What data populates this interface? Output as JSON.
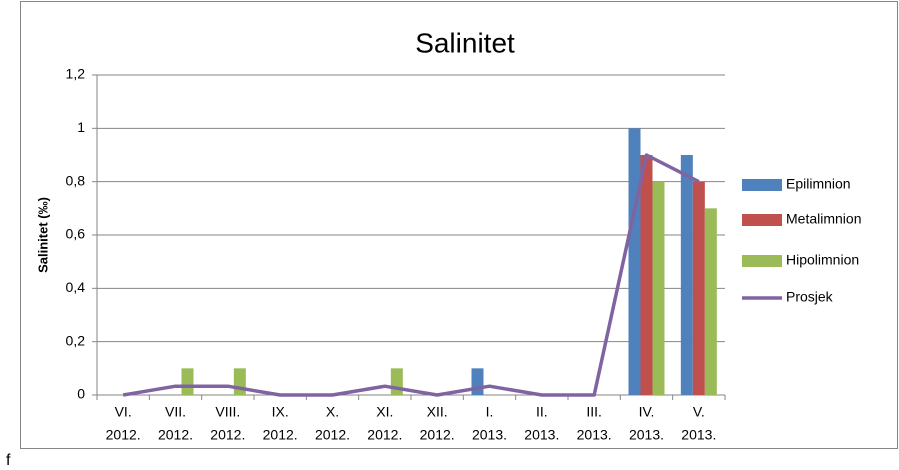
{
  "chart_data": {
    "type": "bar",
    "title": "Salinitet",
    "y_label": "Salinitet (‰)",
    "categories": [
      [
        "VI.",
        "2012."
      ],
      [
        "VII.",
        "2012."
      ],
      [
        "VIII.",
        "2012."
      ],
      [
        "IX.",
        "2012."
      ],
      [
        "X.",
        "2012."
      ],
      [
        "XI.",
        "2012."
      ],
      [
        "XII.",
        "2012."
      ],
      [
        "I.",
        "2013."
      ],
      [
        "II.",
        "2013."
      ],
      [
        "III.",
        "2013."
      ],
      [
        "IV.",
        "2013."
      ],
      [
        "V.",
        "2013."
      ]
    ],
    "series": [
      {
        "name": "Epilimnion",
        "type": "bar",
        "color": "#4f81bd",
        "values": [
          0,
          0,
          0,
          0,
          0,
          0,
          0,
          0.1,
          0,
          0,
          1.0,
          0.9
        ]
      },
      {
        "name": "Metalimnion",
        "type": "bar",
        "color": "#c0504d",
        "values": [
          0,
          0,
          0,
          0,
          0,
          0,
          0,
          0,
          0,
          0,
          0.9,
          0.8
        ]
      },
      {
        "name": "Hipolimnion",
        "type": "bar",
        "color": "#9bbb59",
        "values": [
          0,
          0.1,
          0.1,
          0,
          0,
          0.1,
          0,
          0,
          0,
          0,
          0.8,
          0.7
        ]
      },
      {
        "name": "Prosjek",
        "type": "line",
        "color": "#8064a2",
        "values": [
          0,
          0.033,
          0.033,
          0,
          0,
          0.033,
          0,
          0.033,
          0,
          0,
          0.9,
          0.8
        ]
      }
    ],
    "ylim": [
      0,
      1.2
    ],
    "yticks": [
      0,
      {
        "value": 0.2,
        "label": "0,2"
      },
      {
        "value": 0.4,
        "label": "0,4"
      },
      {
        "value": 0.6,
        "label": "0,6"
      },
      {
        "value": 0.8,
        "label": "0,8"
      },
      1,
      {
        "value": 1.2,
        "label": "1,2"
      }
    ],
    "grid": true,
    "legend": "right",
    "footnote": "f"
  }
}
